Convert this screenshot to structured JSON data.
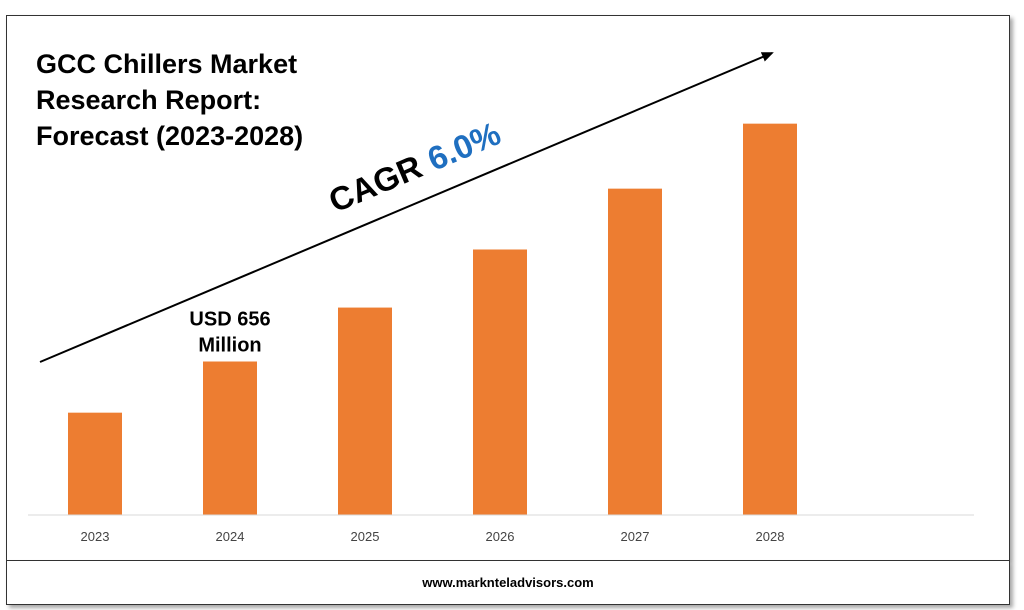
{
  "title_lines": [
    "GCC Chillers Market",
    "Research Report:",
    "Forecast (2023-2028)"
  ],
  "cagr": {
    "label": "CAGR",
    "value": "6.0%",
    "label_color": "#000000",
    "value_color": "#1f6fc0"
  },
  "footer": {
    "url": "www.marknteladvisors.com"
  },
  "colors": {
    "bar": "#ed7d31",
    "axis": "#d9d9d9",
    "arrow": "#000000"
  },
  "chart_data": {
    "type": "bar",
    "categories": [
      "2023",
      "2024",
      "2025",
      "2026",
      "2027",
      "2028"
    ],
    "values": [
      619,
      656,
      695,
      737,
      781,
      828
    ],
    "ylim": [
      545,
      848
    ],
    "grid": false,
    "legend": "none",
    "annotations": [
      {
        "category": "2024",
        "lines": [
          "USD 656",
          "Million"
        ]
      }
    ]
  }
}
